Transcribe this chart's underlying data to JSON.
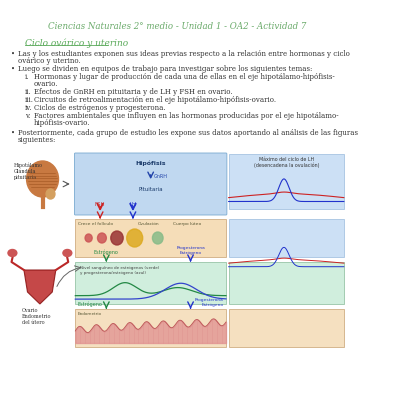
{
  "bg_color": "#ffffff",
  "header_color": "#6aaa6a",
  "header_text": "Ciencias Naturales 2° medio - Unidad 1 - OA2 - Actividad 7",
  "section_title": "Ciclo ovárico y uterino",
  "section_title_color": "#5aaa5a",
  "body_text_color": "#333333",
  "post_text": [
    "Posteriormente, cada grupo de estudio les expone sus datos aportando al análisis de las figuras",
    "siguientes:"
  ]
}
